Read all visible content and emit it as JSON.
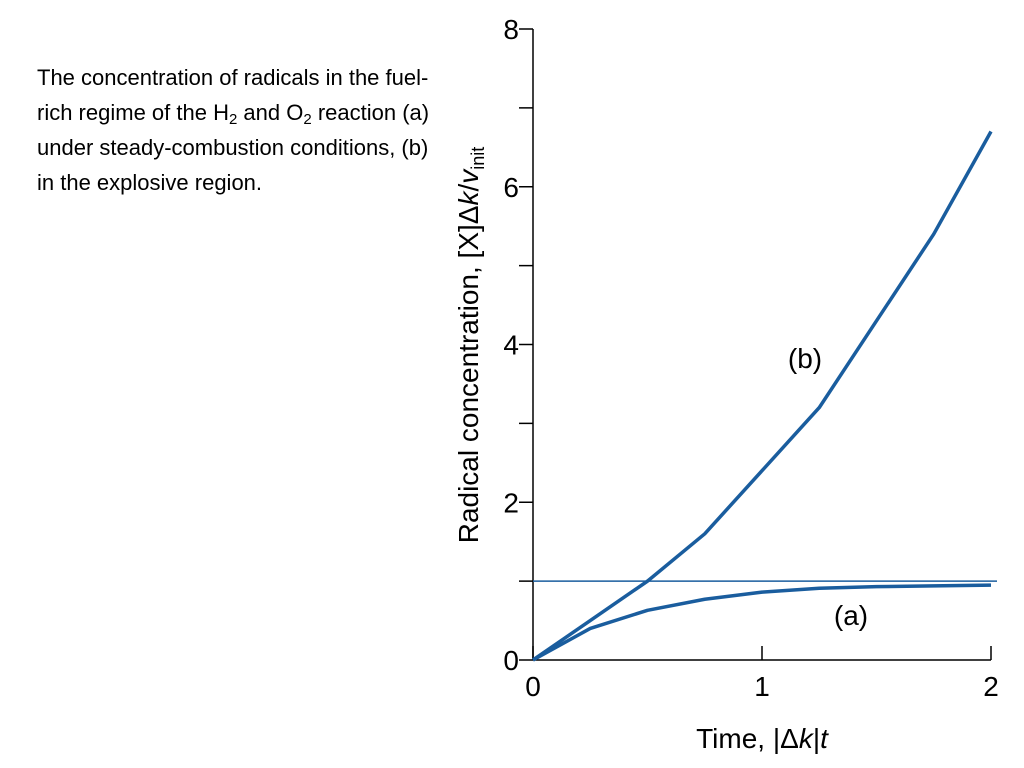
{
  "caption": [
    "The concentration of radicals in the fuel-rich regime of the H",
    "2",
    " and O",
    "2",
    " reaction (a) under steady-combustion conditions, (b) in the explosive region."
  ],
  "chart_data": {
    "type": "line",
    "ylabel": [
      "Radical concentration, [X]Δ",
      "k",
      "/",
      "v",
      "init"
    ],
    "xlabel": [
      "Time, |Δ",
      "k",
      "|",
      "t"
    ],
    "x": [
      0,
      0.25,
      0.5,
      0.75,
      1,
      1.25,
      1.5,
      1.75,
      2
    ],
    "series": [
      {
        "name": "(a)",
        "color": "#1a5d9e",
        "values": [
          0,
          0.4,
          0.63,
          0.77,
          0.86,
          0.91,
          0.93,
          0.94,
          0.95
        ]
      },
      {
        "name": "(b)",
        "color": "#1a5d9e",
        "values": [
          0,
          0.5,
          1.0,
          1.6,
          2.4,
          3.2,
          4.3,
          5.4,
          6.7
        ]
      }
    ],
    "hline": 1,
    "xlim": [
      0,
      2
    ],
    "ylim": [
      0,
      8
    ],
    "xticks": [
      0,
      1,
      2
    ],
    "yticks": [
      0,
      2,
      4,
      6,
      8
    ],
    "yminor": [
      1,
      3,
      5,
      7
    ]
  }
}
